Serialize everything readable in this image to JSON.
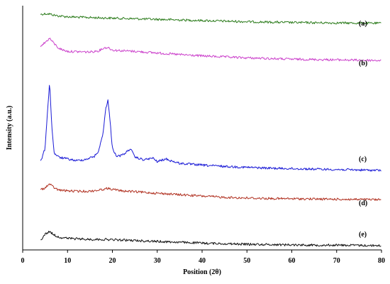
{
  "chart_data": {
    "type": "line",
    "title": "",
    "xlabel": "Position (2θ)",
    "ylabel": "Intensity (a.u.)",
    "xlim": [
      0,
      80
    ],
    "xticks": [
      0,
      10,
      20,
      30,
      40,
      50,
      60,
      70,
      80
    ],
    "y_tick_labels": false,
    "grid": false,
    "legend": "none",
    "series": [
      {
        "name": "(a)",
        "color": "#2e7d1e",
        "x": [
          4,
          5,
          6,
          7,
          8,
          10,
          12,
          15,
          18,
          20,
          25,
          30,
          35,
          40,
          45,
          50,
          55,
          60,
          65,
          70,
          75,
          80
        ],
        "y": [
          0.92,
          0.95,
          0.94,
          0.88,
          0.84,
          0.8,
          0.78,
          0.76,
          0.74,
          0.73,
          0.7,
          0.67,
          0.64,
          0.61,
          0.58,
          0.55,
          0.53,
          0.51,
          0.5,
          0.49,
          0.48,
          0.47
        ]
      },
      {
        "name": "(b)",
        "color": "#cc44cc",
        "x": [
          4,
          5,
          6,
          7,
          8,
          9,
          10,
          12,
          15,
          17,
          18,
          19,
          20,
          22,
          25,
          30,
          35,
          40,
          45,
          50,
          55,
          60,
          65,
          70,
          75,
          80
        ],
        "y": [
          0.75,
          0.85,
          0.98,
          0.82,
          0.68,
          0.62,
          0.58,
          0.57,
          0.56,
          0.6,
          0.68,
          0.7,
          0.62,
          0.6,
          0.58,
          0.53,
          0.48,
          0.44,
          0.41,
          0.38,
          0.36,
          0.34,
          0.33,
          0.32,
          0.31,
          0.3
        ]
      },
      {
        "name": "(c)",
        "color": "#1a1ad6",
        "x": [
          4,
          5,
          5.5,
          6,
          6.5,
          7,
          8,
          10,
          12,
          14,
          16,
          17,
          18,
          18.5,
          19,
          19.5,
          20,
          21,
          22,
          23,
          24,
          25,
          27,
          29,
          30,
          32,
          33,
          35,
          40,
          45,
          50,
          55,
          60,
          65,
          70,
          75,
          80
        ],
        "y": [
          0.2,
          0.5,
          1.3,
          2.0,
          1.0,
          0.4,
          0.3,
          0.26,
          0.22,
          0.25,
          0.32,
          0.45,
          0.9,
          1.4,
          1.6,
          1.1,
          0.5,
          0.32,
          0.34,
          0.4,
          0.5,
          0.3,
          0.24,
          0.28,
          0.2,
          0.26,
          0.22,
          0.16,
          0.12,
          0.09,
          0.07,
          0.05,
          0.04,
          0.03,
          0.02,
          0.01,
          0.0
        ]
      },
      {
        "name": "(d)",
        "color": "#b03020",
        "x": [
          4,
          5,
          6,
          7,
          8,
          10,
          12,
          15,
          17,
          19,
          20,
          22,
          25,
          30,
          35,
          40,
          45,
          50,
          55,
          60,
          65,
          70,
          75,
          80
        ],
        "y": [
          0.95,
          1.05,
          1.2,
          1.05,
          0.95,
          0.92,
          0.9,
          0.9,
          0.95,
          1.02,
          0.98,
          0.92,
          0.88,
          0.82,
          0.76,
          0.7,
          0.65,
          0.62,
          0.6,
          0.59,
          0.58,
          0.57,
          0.56,
          0.55
        ]
      },
      {
        "name": "(e)",
        "color": "#111111",
        "x": [
          4,
          5,
          6,
          7,
          8,
          10,
          12,
          15,
          18,
          20,
          25,
          30,
          35,
          40,
          45,
          50,
          55,
          60,
          65,
          70,
          75,
          80
        ],
        "y": [
          0.2,
          0.4,
          0.5,
          0.38,
          0.3,
          0.26,
          0.24,
          0.22,
          0.22,
          0.21,
          0.18,
          0.15,
          0.12,
          0.09,
          0.07,
          0.05,
          0.04,
          0.03,
          0.02,
          0.02,
          0.01,
          0.0
        ]
      }
    ]
  }
}
